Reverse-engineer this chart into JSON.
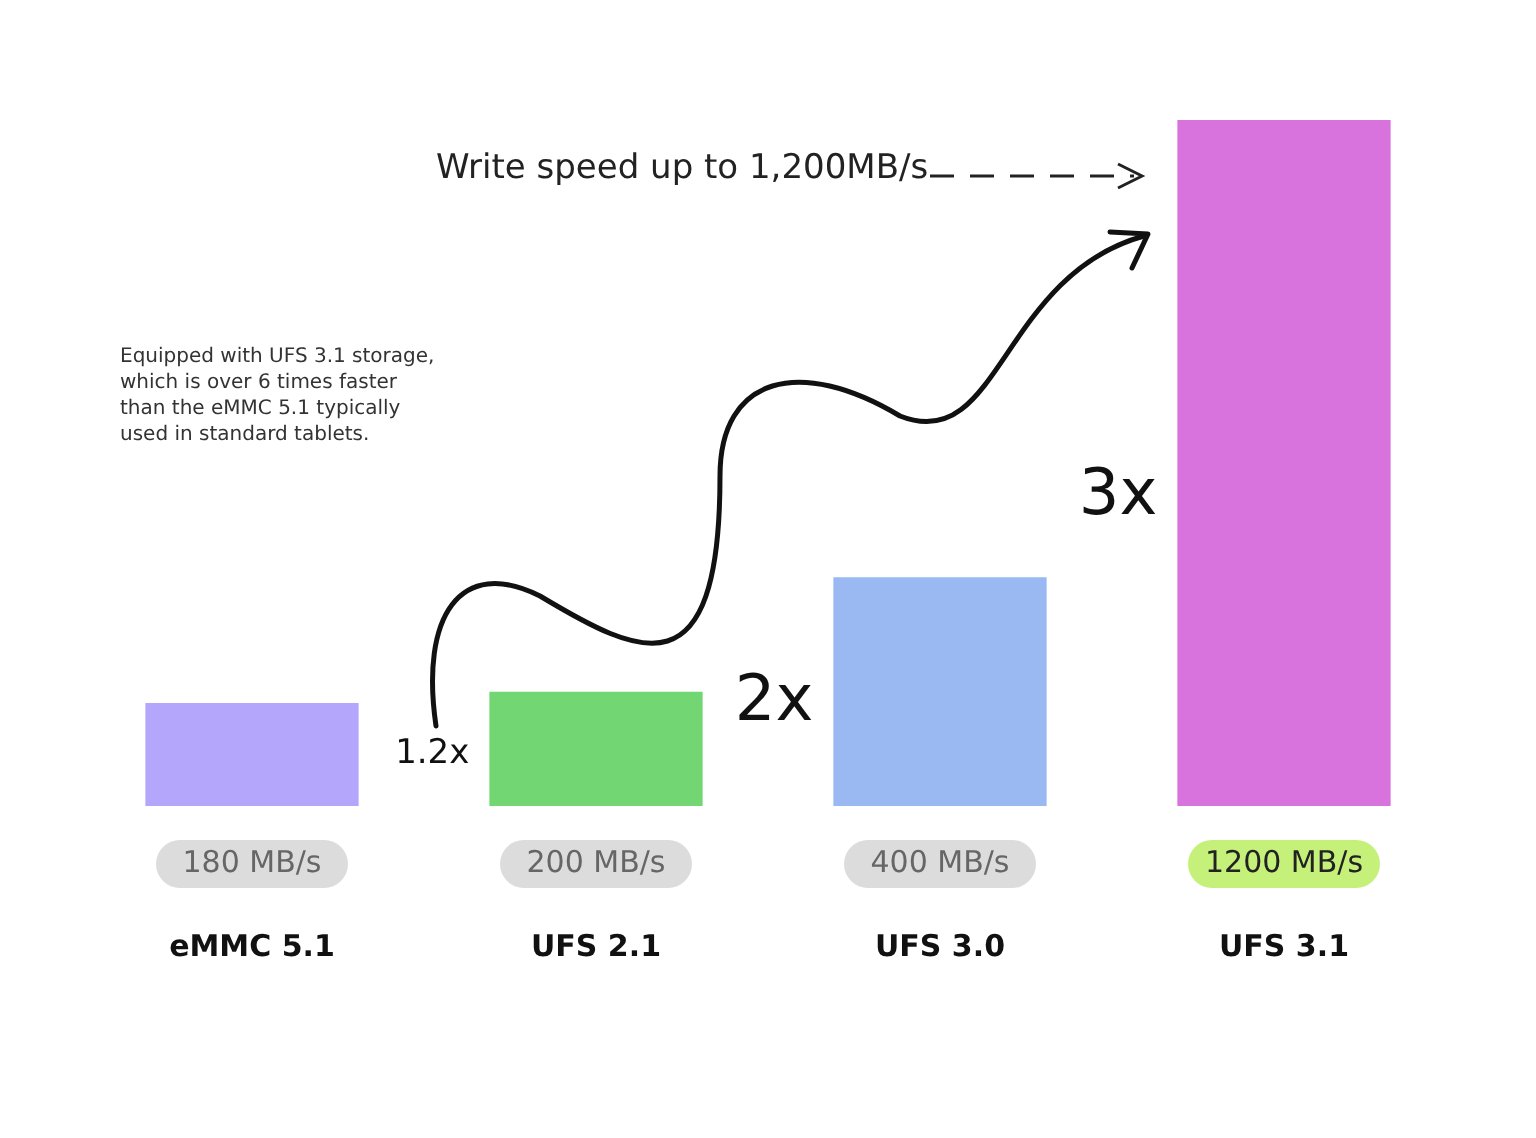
{
  "chart_data": {
    "type": "bar",
    "categories": [
      "eMMC 5.1",
      "UFS 2.1",
      "UFS 3.0",
      "UFS 3.1"
    ],
    "values": [
      180,
      200,
      400,
      1200
    ],
    "colors": [
      "#b3a6fb",
      "#72d672",
      "#9ab8f2",
      "#d872dc"
    ],
    "value_labels": [
      "180 MB/s",
      "200 MB/s",
      "400 MB/s",
      "1200 MB/s"
    ],
    "annotations": [
      "Write speed up to 1,200MB/s",
      "Equipped with UFS 3.1 storage, which is over 6 times faster than the eMMC 5.1 typically used in standard tablets.",
      "1.2x",
      "2x",
      "3x"
    ],
    "grid": false,
    "legend": false
  }
}
